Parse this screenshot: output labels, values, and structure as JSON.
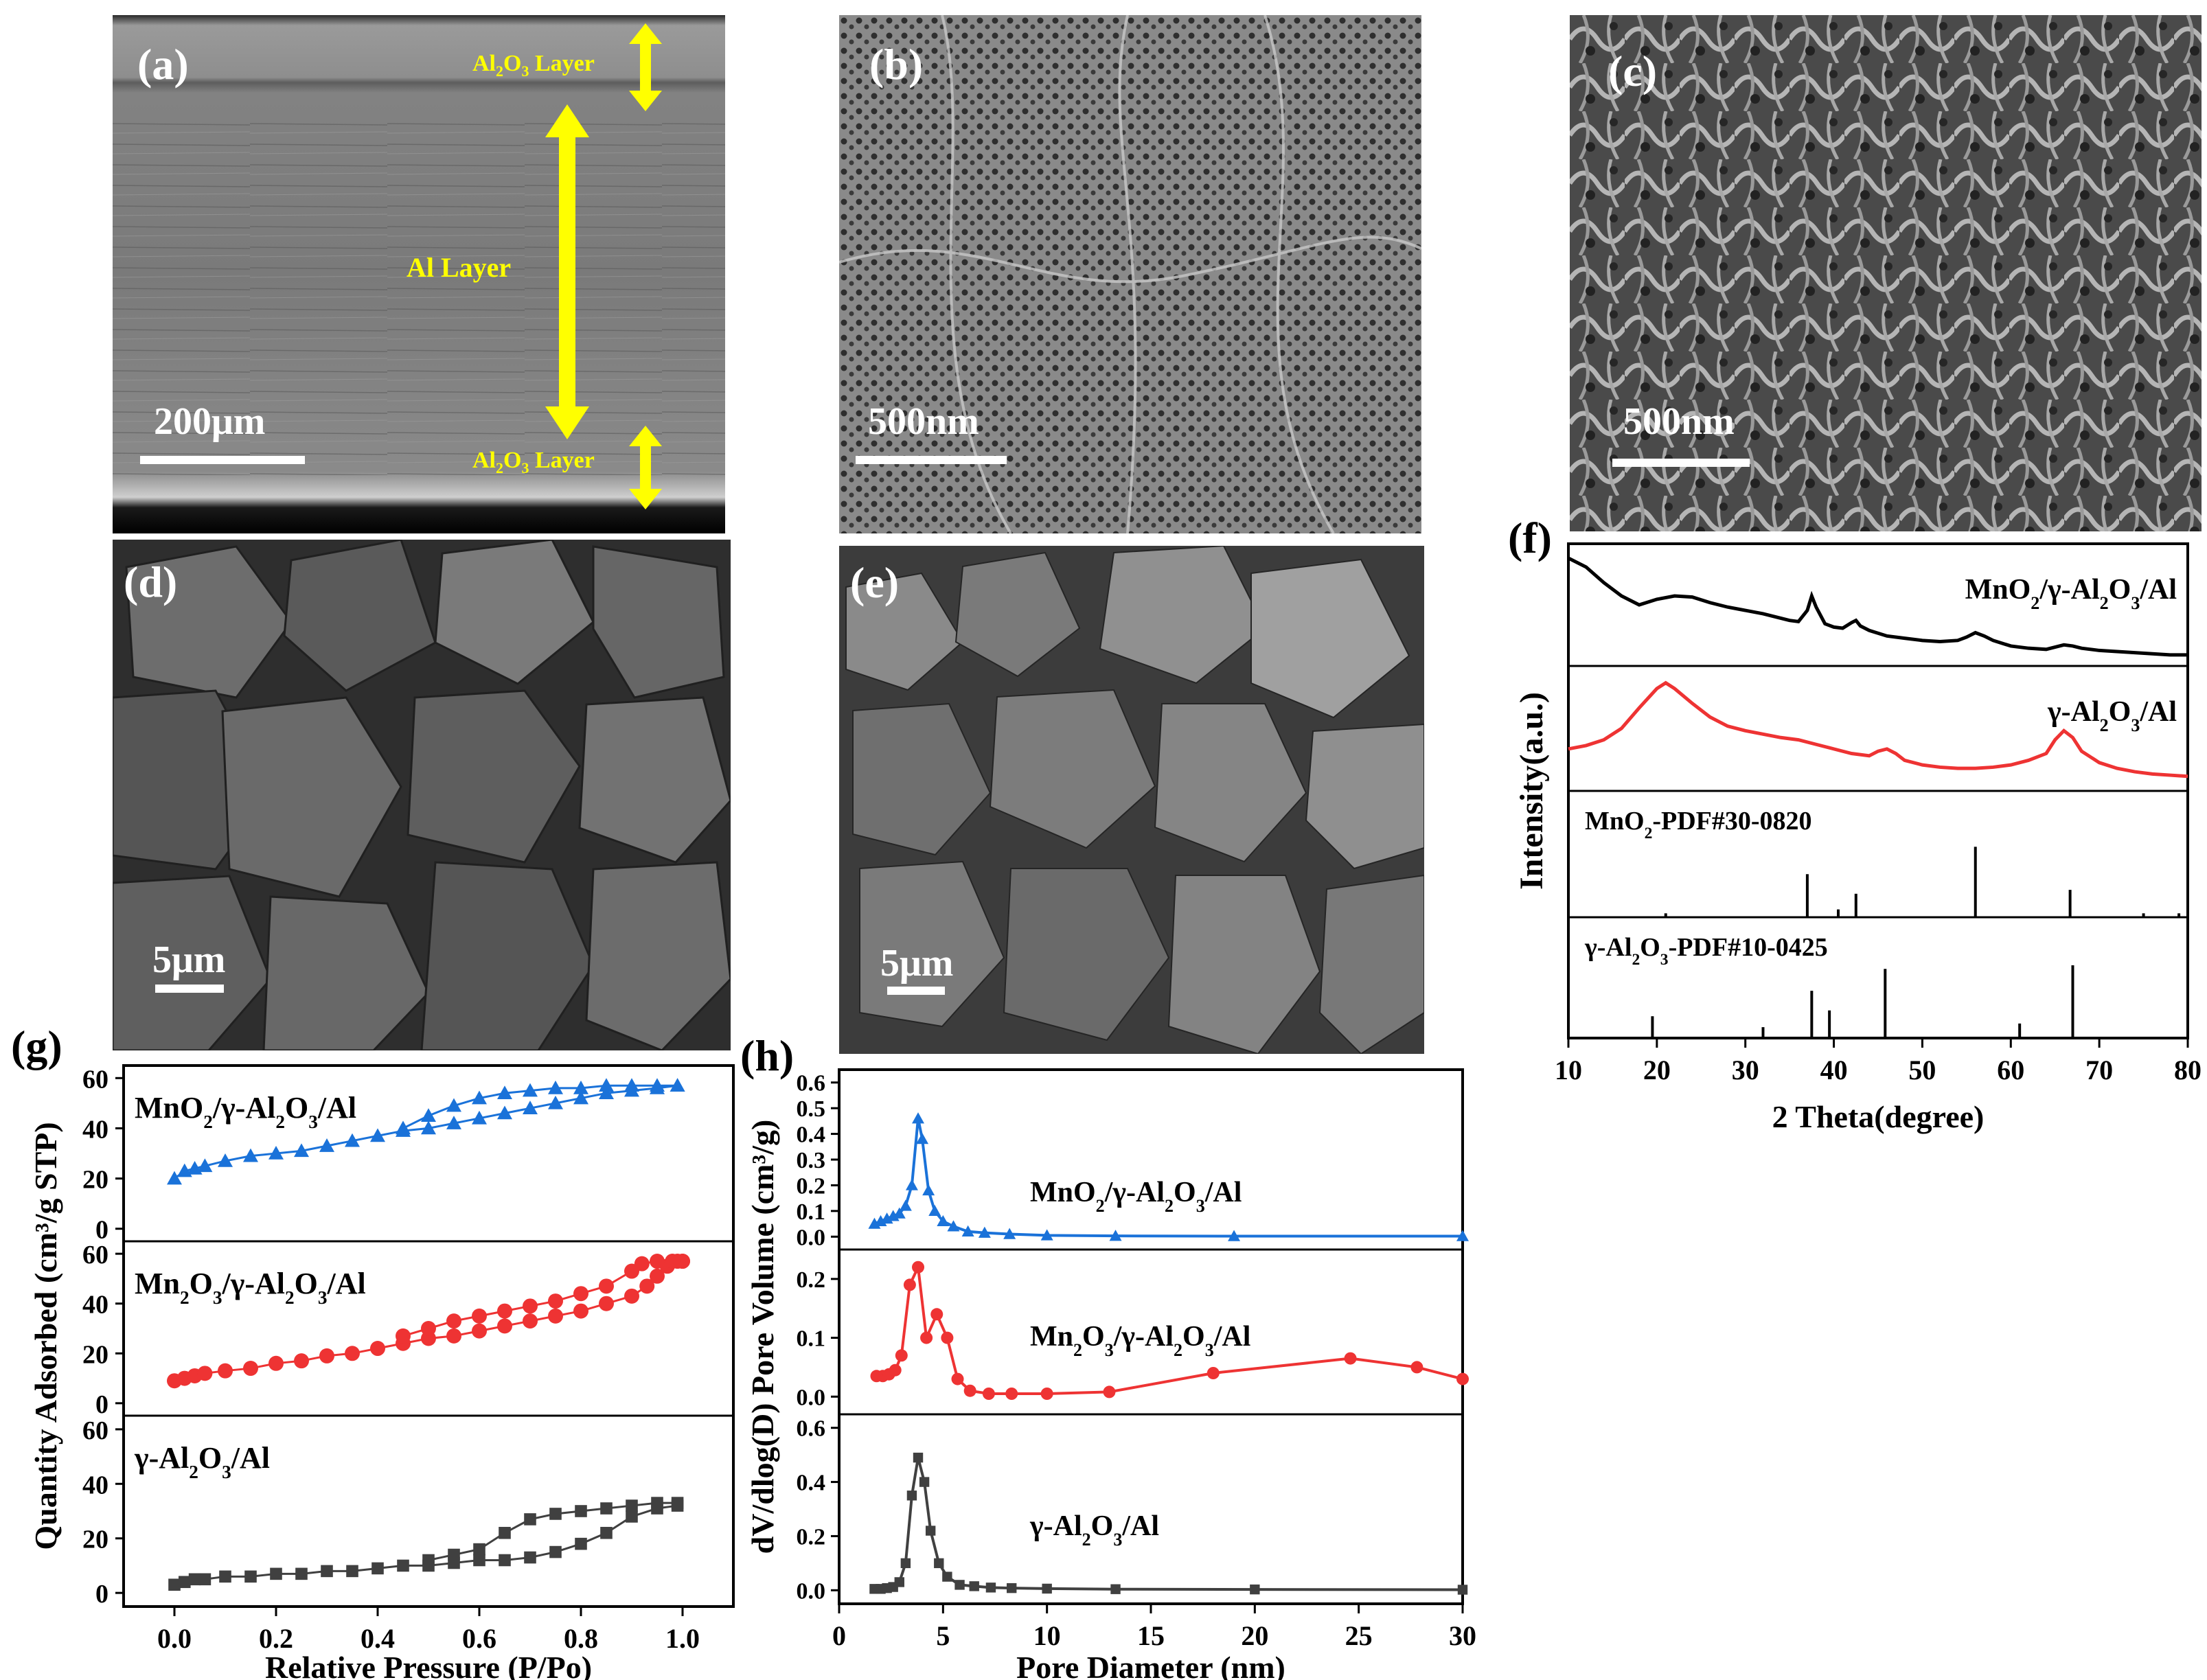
{
  "panels": {
    "a": {
      "label": "(a)",
      "scale": "200μm",
      "top_layer": [
        "Al",
        "2",
        "O",
        "3",
        " Layer"
      ],
      "mid_layer": "Al Layer",
      "bottom_layer": [
        "Al",
        "2",
        "O",
        "3",
        " Layer"
      ]
    },
    "b": {
      "label": "(b)",
      "scale": "500nm"
    },
    "c": {
      "label": "(c)",
      "scale": "500nm"
    },
    "d": {
      "label": "(d)",
      "scale": "5μm"
    },
    "e": {
      "label": "(e)",
      "scale": "5μm"
    },
    "f": {
      "label": "(f)"
    },
    "g": {
      "label": "(g)"
    },
    "h": {
      "label": "(h)"
    }
  },
  "colors": {
    "black": "#000000",
    "red": "#ee3333",
    "blue": "#1a72d9",
    "gray": "#404040",
    "yellow": "#ffff00"
  },
  "chart_data": [
    {
      "id": "f",
      "type": "line",
      "xlabel": "2 Theta(degree)",
      "ylabel": "Intensity(a.u.)",
      "xlim": [
        10,
        80
      ],
      "xticks": [
        10,
        20,
        30,
        40,
        50,
        60,
        70,
        80
      ],
      "series": [
        {
          "name": "MnO2/γ-Al2O3/Al",
          "label_parts": [
            "MnO",
            "2",
            "/γ-Al",
            "2",
            "O",
            "3",
            "/Al"
          ],
          "color": "#000000",
          "x": [
            10,
            12,
            14,
            16,
            18,
            20,
            22,
            24,
            26,
            28,
            30,
            32,
            34,
            35,
            36,
            37,
            37.5,
            38,
            39,
            40,
            41,
            42,
            42.5,
            43,
            44,
            46,
            48,
            50,
            52,
            54,
            55,
            56,
            57,
            58,
            60,
            62,
            64,
            65,
            66,
            67,
            68,
            70,
            72,
            74,
            76,
            78,
            80
          ],
          "y": [
            0.92,
            0.84,
            0.7,
            0.58,
            0.5,
            0.55,
            0.58,
            0.57,
            0.52,
            0.48,
            0.45,
            0.42,
            0.38,
            0.36,
            0.35,
            0.45,
            0.58,
            0.48,
            0.33,
            0.3,
            0.29,
            0.34,
            0.36,
            0.31,
            0.27,
            0.22,
            0.2,
            0.18,
            0.17,
            0.18,
            0.21,
            0.25,
            0.22,
            0.18,
            0.13,
            0.11,
            0.1,
            0.12,
            0.14,
            0.13,
            0.11,
            0.09,
            0.08,
            0.07,
            0.06,
            0.05,
            0.05
          ]
        },
        {
          "name": "γ-Al2O3/Al",
          "label_parts": [
            "γ-Al",
            "2",
            "O",
            "3",
            "/Al"
          ],
          "color": "#ee3333",
          "x": [
            10,
            12,
            14,
            16,
            18,
            20,
            21,
            22,
            24,
            26,
            28,
            30,
            32,
            34,
            36,
            38,
            40,
            42,
            44,
            45,
            46,
            47,
            48,
            50,
            52,
            54,
            56,
            58,
            60,
            62,
            64,
            65,
            66,
            67,
            68,
            70,
            72,
            74,
            76,
            78,
            80
          ],
          "y": [
            0.32,
            0.35,
            0.4,
            0.5,
            0.68,
            0.85,
            0.9,
            0.85,
            0.72,
            0.6,
            0.52,
            0.48,
            0.45,
            0.42,
            0.4,
            0.36,
            0.32,
            0.28,
            0.26,
            0.3,
            0.32,
            0.28,
            0.22,
            0.18,
            0.16,
            0.15,
            0.15,
            0.16,
            0.18,
            0.22,
            0.28,
            0.4,
            0.48,
            0.42,
            0.3,
            0.2,
            0.15,
            0.12,
            0.1,
            0.09,
            0.08
          ]
        },
        {
          "name": "MnO2-PDF#30-0820",
          "label_parts": [
            "MnO",
            "2",
            "-PDF#30-0820"
          ],
          "type": "stick",
          "color": "#000000",
          "x": [
            21,
            37,
            40.5,
            42.5,
            56,
            66.7,
            75,
            79
          ],
          "y": [
            0.05,
            0.55,
            0.1,
            0.3,
            0.9,
            0.35,
            0.05,
            0.05
          ]
        },
        {
          "name": "γ-Al2O3-PDF#10-0425",
          "label_parts": [
            "γ-Al",
            "2",
            "O",
            "3",
            "-PDF#10-0425"
          ],
          "type": "stick",
          "color": "#000000",
          "x": [
            19.5,
            32,
            37.5,
            39.5,
            45.8,
            61,
            67
          ],
          "y": [
            0.3,
            0.15,
            0.65,
            0.38,
            0.95,
            0.2,
            1.0
          ]
        }
      ]
    },
    {
      "id": "g",
      "type": "scatter",
      "xlabel": "Relative Pressure (P/Po)",
      "ylabel": "Quantity Adsorbed (cm³/g STP)",
      "xlim": [
        -0.1,
        1.1
      ],
      "xticks": [
        0.0,
        0.2,
        0.4,
        0.6,
        0.8,
        1.0
      ],
      "ylim": [
        -5,
        65
      ],
      "yticks": [
        0,
        20,
        40,
        60
      ],
      "series": [
        {
          "name": "MnO2/γ-Al2O3/Al",
          "label_parts": [
            "MnO",
            "2",
            "/γ-Al",
            "2",
            "O",
            "3",
            "/Al"
          ],
          "color": "#1a72d9",
          "marker": "triangle",
          "adsorption": {
            "x": [
              0.0,
              0.02,
              0.04,
              0.06,
              0.1,
              0.15,
              0.2,
              0.25,
              0.3,
              0.35,
              0.4,
              0.45,
              0.5,
              0.55,
              0.6,
              0.65,
              0.7,
              0.75,
              0.8,
              0.85,
              0.9,
              0.95,
              0.99
            ],
            "y": [
              20,
              23,
              24,
              25,
              27,
              29,
              30,
              31,
              33,
              35,
              37,
              39,
              40,
              42,
              44,
              46,
              48,
              50,
              52,
              54,
              55,
              56,
              57
            ]
          },
          "desorption": {
            "x": [
              0.99,
              0.95,
              0.9,
              0.85,
              0.8,
              0.75,
              0.7,
              0.65,
              0.6,
              0.55,
              0.5,
              0.45
            ],
            "y": [
              57,
              57,
              57,
              57,
              56,
              56,
              55,
              54,
              52,
              49,
              45,
              40
            ]
          }
        },
        {
          "name": "Mn2O3/γ-Al2O3/Al",
          "label_parts": [
            "Mn",
            "2",
            "O",
            "3",
            "/γ-Al",
            "2",
            "O",
            "3",
            "/Al"
          ],
          "color": "#ee3333",
          "marker": "circle",
          "adsorption": {
            "x": [
              0.0,
              0.02,
              0.04,
              0.06,
              0.1,
              0.15,
              0.2,
              0.25,
              0.3,
              0.35,
              0.4,
              0.45,
              0.5,
              0.55,
              0.6,
              0.65,
              0.7,
              0.75,
              0.8,
              0.85,
              0.9,
              0.93,
              0.95,
              0.97,
              0.99,
              1.0
            ],
            "y": [
              9,
              10,
              11,
              12,
              13,
              14,
              16,
              17,
              19,
              20,
              22,
              24,
              26,
              27,
              29,
              31,
              33,
              35,
              37,
              40,
              43,
              47,
              51,
              55,
              57,
              57
            ]
          },
          "desorption": {
            "x": [
              1.0,
              0.98,
              0.95,
              0.92,
              0.9,
              0.85,
              0.8,
              0.75,
              0.7,
              0.65,
              0.6,
              0.55,
              0.5,
              0.45
            ],
            "y": [
              57,
              57,
              57,
              56,
              53,
              47,
              44,
              41,
              39,
              37,
              35,
              33,
              30,
              27
            ]
          }
        },
        {
          "name": "γ-Al2O3/Al",
          "label_parts": [
            "γ-Al",
            "2",
            "O",
            "3",
            "/Al"
          ],
          "color": "#404040",
          "marker": "square",
          "adsorption": {
            "x": [
              0.0,
              0.02,
              0.04,
              0.06,
              0.1,
              0.15,
              0.2,
              0.25,
              0.3,
              0.35,
              0.4,
              0.45,
              0.5,
              0.55,
              0.6,
              0.65,
              0.7,
              0.75,
              0.8,
              0.85,
              0.9,
              0.95,
              0.99
            ],
            "y": [
              3,
              4,
              5,
              5,
              6,
              6,
              7,
              7,
              8,
              8,
              9,
              10,
              10,
              11,
              12,
              12,
              13,
              15,
              18,
              22,
              28,
              31,
              32
            ]
          },
          "desorption": {
            "x": [
              0.99,
              0.95,
              0.9,
              0.85,
              0.8,
              0.75,
              0.7,
              0.65,
              0.6,
              0.55,
              0.5
            ],
            "y": [
              33,
              33,
              32,
              31,
              30,
              29,
              27,
              22,
              16,
              14,
              12
            ]
          }
        }
      ]
    },
    {
      "id": "h",
      "type": "line",
      "xlabel": "Pore Diameter (nm)",
      "ylabel": "dV/dlog(D) Pore Volume (cm³/g)",
      "xlim": [
        0,
        30
      ],
      "xticks": [
        0,
        5,
        10,
        15,
        20,
        25,
        30
      ],
      "series": [
        {
          "name": "MnO2/γ-Al2O3/Al",
          "label_parts": [
            "MnO",
            "2",
            "/γ-Al",
            "2",
            "O",
            "3",
            "/Al"
          ],
          "color": "#1a72d9",
          "marker": "triangle",
          "ylim": [
            -0.05,
            0.65
          ],
          "yticks": [
            0.0,
            0.1,
            0.2,
            0.3,
            0.4,
            0.5,
            0.6
          ],
          "x": [
            1.7,
            2.0,
            2.3,
            2.6,
            2.9,
            3.2,
            3.5,
            3.8,
            4.0,
            4.3,
            4.6,
            5.0,
            5.5,
            6.2,
            7.0,
            8.2,
            10,
            13.3,
            19,
            30
          ],
          "y": [
            0.05,
            0.06,
            0.07,
            0.08,
            0.09,
            0.12,
            0.2,
            0.46,
            0.38,
            0.18,
            0.1,
            0.06,
            0.04,
            0.02,
            0.015,
            0.01,
            0.005,
            0.003,
            0.002,
            0.002
          ]
        },
        {
          "name": "Mn2O3/γ-Al2O3/Al",
          "label_parts": [
            "Mn",
            "2",
            "O",
            "3",
            "/γ-Al",
            "2",
            "O",
            "3",
            "/Al"
          ],
          "color": "#ee3333",
          "marker": "circle",
          "ylim": [
            -0.03,
            0.25
          ],
          "yticks": [
            0.0,
            0.1,
            0.2
          ],
          "x": [
            1.8,
            2.1,
            2.4,
            2.7,
            3.0,
            3.4,
            3.8,
            4.2,
            4.7,
            5.2,
            5.7,
            6.3,
            7.2,
            8.3,
            10,
            13,
            18,
            24.6,
            27.8,
            30
          ],
          "y": [
            0.035,
            0.035,
            0.038,
            0.045,
            0.07,
            0.19,
            0.22,
            0.1,
            0.14,
            0.1,
            0.03,
            0.01,
            0.005,
            0.005,
            0.005,
            0.008,
            0.04,
            0.065,
            0.05,
            0.03
          ]
        },
        {
          "name": "γ-Al2O3/Al",
          "label_parts": [
            "γ-Al",
            "2",
            "O",
            "3",
            "/Al"
          ],
          "color": "#404040",
          "marker": "square",
          "ylim": [
            -0.05,
            0.65
          ],
          "yticks": [
            0.0,
            0.2,
            0.4,
            0.6
          ],
          "x": [
            1.7,
            2.0,
            2.3,
            2.6,
            2.9,
            3.2,
            3.5,
            3.8,
            4.1,
            4.4,
            4.8,
            5.2,
            5.8,
            6.5,
            7.3,
            8.3,
            10,
            13.3,
            20,
            30
          ],
          "y": [
            0.005,
            0.005,
            0.008,
            0.012,
            0.03,
            0.1,
            0.35,
            0.49,
            0.4,
            0.22,
            0.1,
            0.05,
            0.02,
            0.015,
            0.01,
            0.008,
            0.006,
            0.004,
            0.003,
            0.002
          ]
        }
      ]
    }
  ]
}
